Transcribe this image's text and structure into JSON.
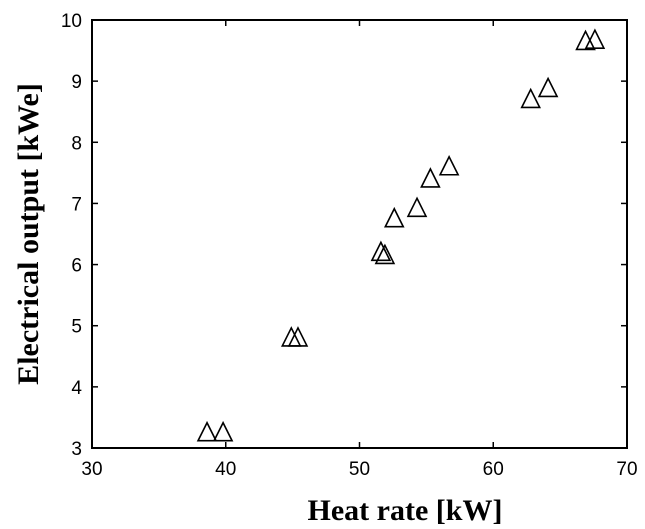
{
  "chart_data": {
    "type": "scatter",
    "title": "",
    "xlabel": "Heat rate [kW]",
    "ylabel": "Electrical output [kWe]",
    "xlim": [
      30,
      70
    ],
    "ylim": [
      3,
      10
    ],
    "xticks": [
      "30",
      "40",
      "50",
      "60",
      "70"
    ],
    "yticks": [
      "3",
      "4",
      "5",
      "6",
      "7",
      "8",
      "9",
      "10"
    ],
    "grid": false,
    "legend": "none",
    "marker": "triangle-open",
    "marker_color": "#000000",
    "series": [
      {
        "x": [
          38.6,
          39.8,
          44.9,
          45.4,
          51.6,
          51.9,
          52.6,
          54.3,
          55.3,
          56.7,
          62.8,
          64.1,
          66.9,
          67.6
        ],
        "y": [
          3.25,
          3.25,
          4.8,
          4.8,
          6.2,
          6.15,
          6.75,
          6.92,
          7.4,
          7.6,
          8.7,
          8.88,
          9.65,
          9.67
        ]
      }
    ]
  }
}
